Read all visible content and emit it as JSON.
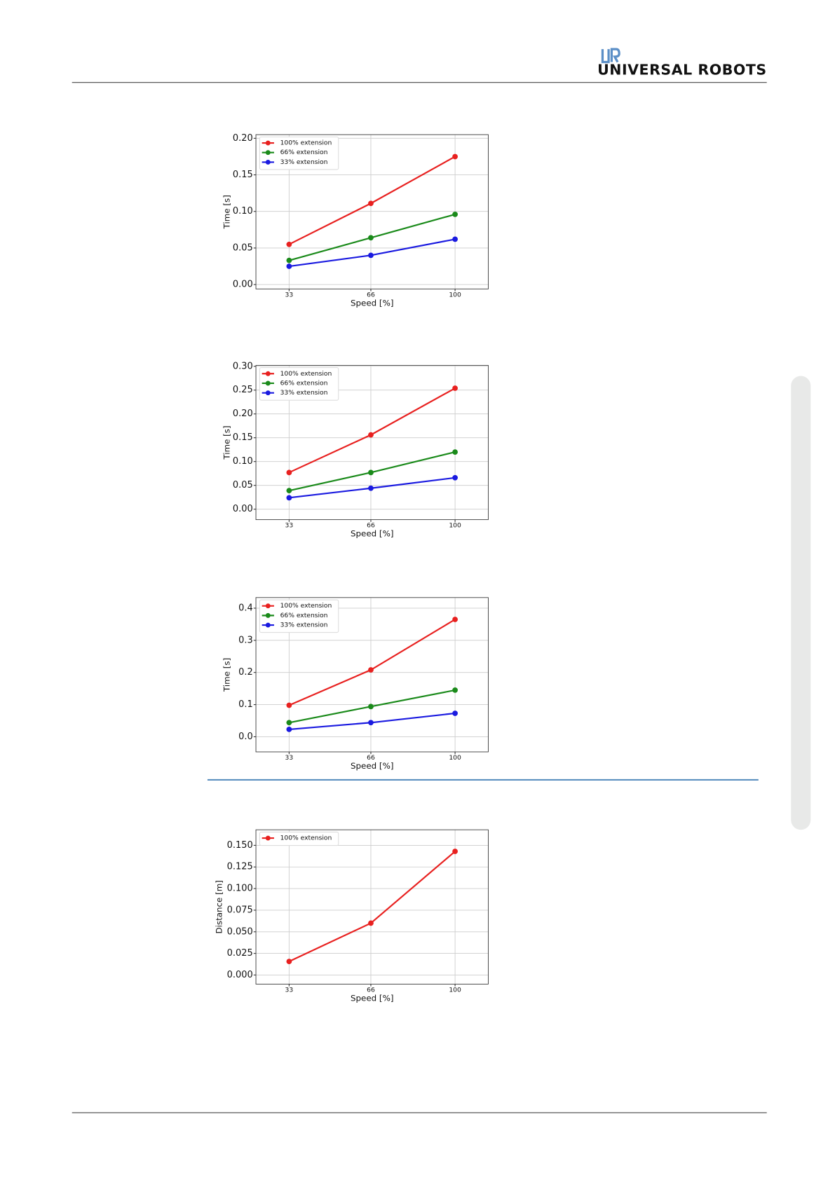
{
  "header": {
    "logo_text": "UNIVERSAL ROBOTS"
  },
  "chart_data": [
    {
      "type": "line",
      "x_label": "Speed [%]",
      "y_label": "Time [s]",
      "x": [
        33,
        66,
        100
      ],
      "xlim": [
        19.6,
        113.4
      ],
      "xticks": [
        33,
        66,
        100
      ],
      "ylim": [
        -0.006,
        0.205
      ],
      "yticks": [
        {
          "value": 0,
          "label": "0.00"
        },
        {
          "value": 0.05,
          "label": "0.05"
        },
        {
          "value": 0.1,
          "label": "0.10"
        },
        {
          "value": 0.15,
          "label": "0.15"
        },
        {
          "value": 0.2,
          "label": "0.20"
        }
      ],
      "grid": true,
      "legend": "upper left",
      "series": [
        {
          "name": "100% extension",
          "color": "#e8201f",
          "values": [
            0.055,
            0.111,
            0.175
          ]
        },
        {
          "name": "66% extension",
          "color": "#1a8a1a",
          "values": [
            0.033,
            0.064,
            0.096
          ]
        },
        {
          "name": "33% extension",
          "color": "#1a1ae0",
          "values": [
            0.025,
            0.04,
            0.062
          ]
        }
      ]
    },
    {
      "type": "line",
      "x_label": "Speed [%]",
      "y_label": "Time [s]",
      "x": [
        33,
        66,
        100
      ],
      "xlim": [
        19.6,
        113.4
      ],
      "xticks": [
        33,
        66,
        100
      ],
      "ylim": [
        -0.022,
        0.302
      ],
      "yticks": [
        {
          "value": 0,
          "label": "0.00"
        },
        {
          "value": 0.05,
          "label": "0.05"
        },
        {
          "value": 0.1,
          "label": "0.10"
        },
        {
          "value": 0.15,
          "label": "0.15"
        },
        {
          "value": 0.2,
          "label": "0.20"
        },
        {
          "value": 0.25,
          "label": "0.25"
        },
        {
          "value": 0.3,
          "label": "0.30"
        }
      ],
      "grid": true,
      "legend": "upper left",
      "series": [
        {
          "name": "100% extension",
          "color": "#e8201f",
          "values": [
            0.077,
            0.156,
            0.254
          ]
        },
        {
          "name": "66% extension",
          "color": "#1a8a1a",
          "values": [
            0.039,
            0.077,
            0.12
          ]
        },
        {
          "name": "33% extension",
          "color": "#1a1ae0",
          "values": [
            0.024,
            0.044,
            0.066
          ]
        }
      ]
    },
    {
      "type": "line",
      "x_label": "Speed [%]",
      "y_label": "Time [s]",
      "x": [
        33,
        66,
        100
      ],
      "xlim": [
        19.6,
        113.4
      ],
      "xticks": [
        33,
        66,
        100
      ],
      "ylim": [
        -0.047,
        0.433
      ],
      "yticks": [
        {
          "value": 0,
          "label": "0.0"
        },
        0.1,
        0.2,
        0.3,
        0.4
      ],
      "grid": true,
      "legend": "upper left",
      "series": [
        {
          "name": "100% extension",
          "color": "#e8201f",
          "values": [
            0.098,
            0.208,
            0.365
          ]
        },
        {
          "name": "66% extension",
          "color": "#1a8a1a",
          "values": [
            0.044,
            0.094,
            0.145
          ]
        },
        {
          "name": "33% extension",
          "color": "#1a1ae0",
          "values": [
            0.023,
            0.044,
            0.073
          ]
        }
      ]
    },
    {
      "type": "line",
      "x_label": "Speed [%]",
      "y_label": "Distance [m]",
      "x": [
        33,
        66,
        100
      ],
      "xlim": [
        19.6,
        113.4
      ],
      "xticks": [
        33,
        66,
        100
      ],
      "ylim": [
        -0.0105,
        0.168
      ],
      "yticks": [
        {
          "value": 0,
          "label": "0.000"
        },
        {
          "value": 0.025,
          "label": "0.025"
        },
        {
          "value": 0.05,
          "label": "0.050"
        },
        {
          "value": 0.075,
          "label": "0.075"
        },
        {
          "value": 0.1,
          "label": "0.100"
        },
        {
          "value": 0.125,
          "label": "0.125"
        },
        {
          "value": 0.15,
          "label": "0.150"
        }
      ],
      "grid": true,
      "legend": "upper left",
      "series": [
        {
          "name": "100% extension",
          "color": "#e8201f",
          "values": [
            0.0157,
            0.06,
            0.143
          ]
        }
      ]
    }
  ]
}
